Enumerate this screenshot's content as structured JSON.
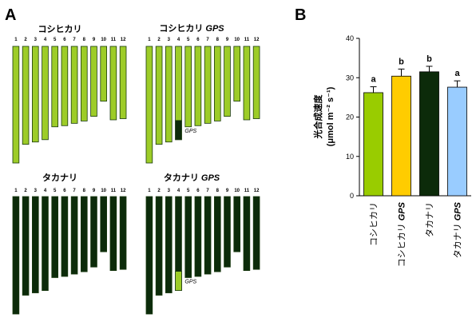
{
  "panel_a": {
    "letter": "A",
    "karyotypes": [
      {
        "title": "コシヒカリ",
        "title_suffix": "",
        "strain_color": "#9dcc28",
        "gps_label": "",
        "introgression_chromosome": null,
        "introgression_color": ""
      },
      {
        "title": "コシヒカリ ",
        "title_suffix": "GPS",
        "strain_color": "#9dcc28",
        "gps_label": "GPS",
        "introgression_chromosome": 4,
        "introgression_color": "#0c2b0a"
      },
      {
        "title": "タカナリ",
        "title_suffix": "",
        "strain_color": "#0c2b0a",
        "gps_label": "",
        "introgression_chromosome": null,
        "introgression_color": ""
      },
      {
        "title": "タカナリ ",
        "title_suffix": "GPS",
        "strain_color": "#0c2b0a",
        "gps_label": "GPS",
        "introgression_chromosome": 4,
        "introgression_color": "#9dcc28"
      }
    ],
    "chromosome_numbers": [
      "1",
      "2",
      "3",
      "4",
      "5",
      "6",
      "7",
      "8",
      "9",
      "10",
      "11",
      "12"
    ],
    "chromosome_relative_lengths": [
      1.0,
      0.84,
      0.82,
      0.8,
      0.69,
      0.68,
      0.66,
      0.64,
      0.6,
      0.47,
      0.63,
      0.62
    ]
  },
  "panel_b": {
    "letter": "B",
    "chart_data": {
      "type": "bar",
      "categories": [
        "コシヒカリ",
        "コシヒカリ GPS",
        "タカナリ",
        "タカナリ GPS"
      ],
      "values": [
        26.2,
        30.4,
        31.5,
        27.6
      ],
      "errors": [
        1.5,
        1.8,
        1.4,
        1.6
      ],
      "significance": [
        "a",
        "b",
        "b",
        "a"
      ],
      "colors": [
        "#99cc00",
        "#ffcc00",
        "#0c2b0a",
        "#99ccff"
      ],
      "ylabel_line1": "光合成速度",
      "ylabel_line2": "(μmol m⁻² s⁻¹)",
      "ylim": [
        0,
        40
      ],
      "yticks": [
        "0",
        "10",
        "20",
        "30",
        "40"
      ]
    }
  }
}
